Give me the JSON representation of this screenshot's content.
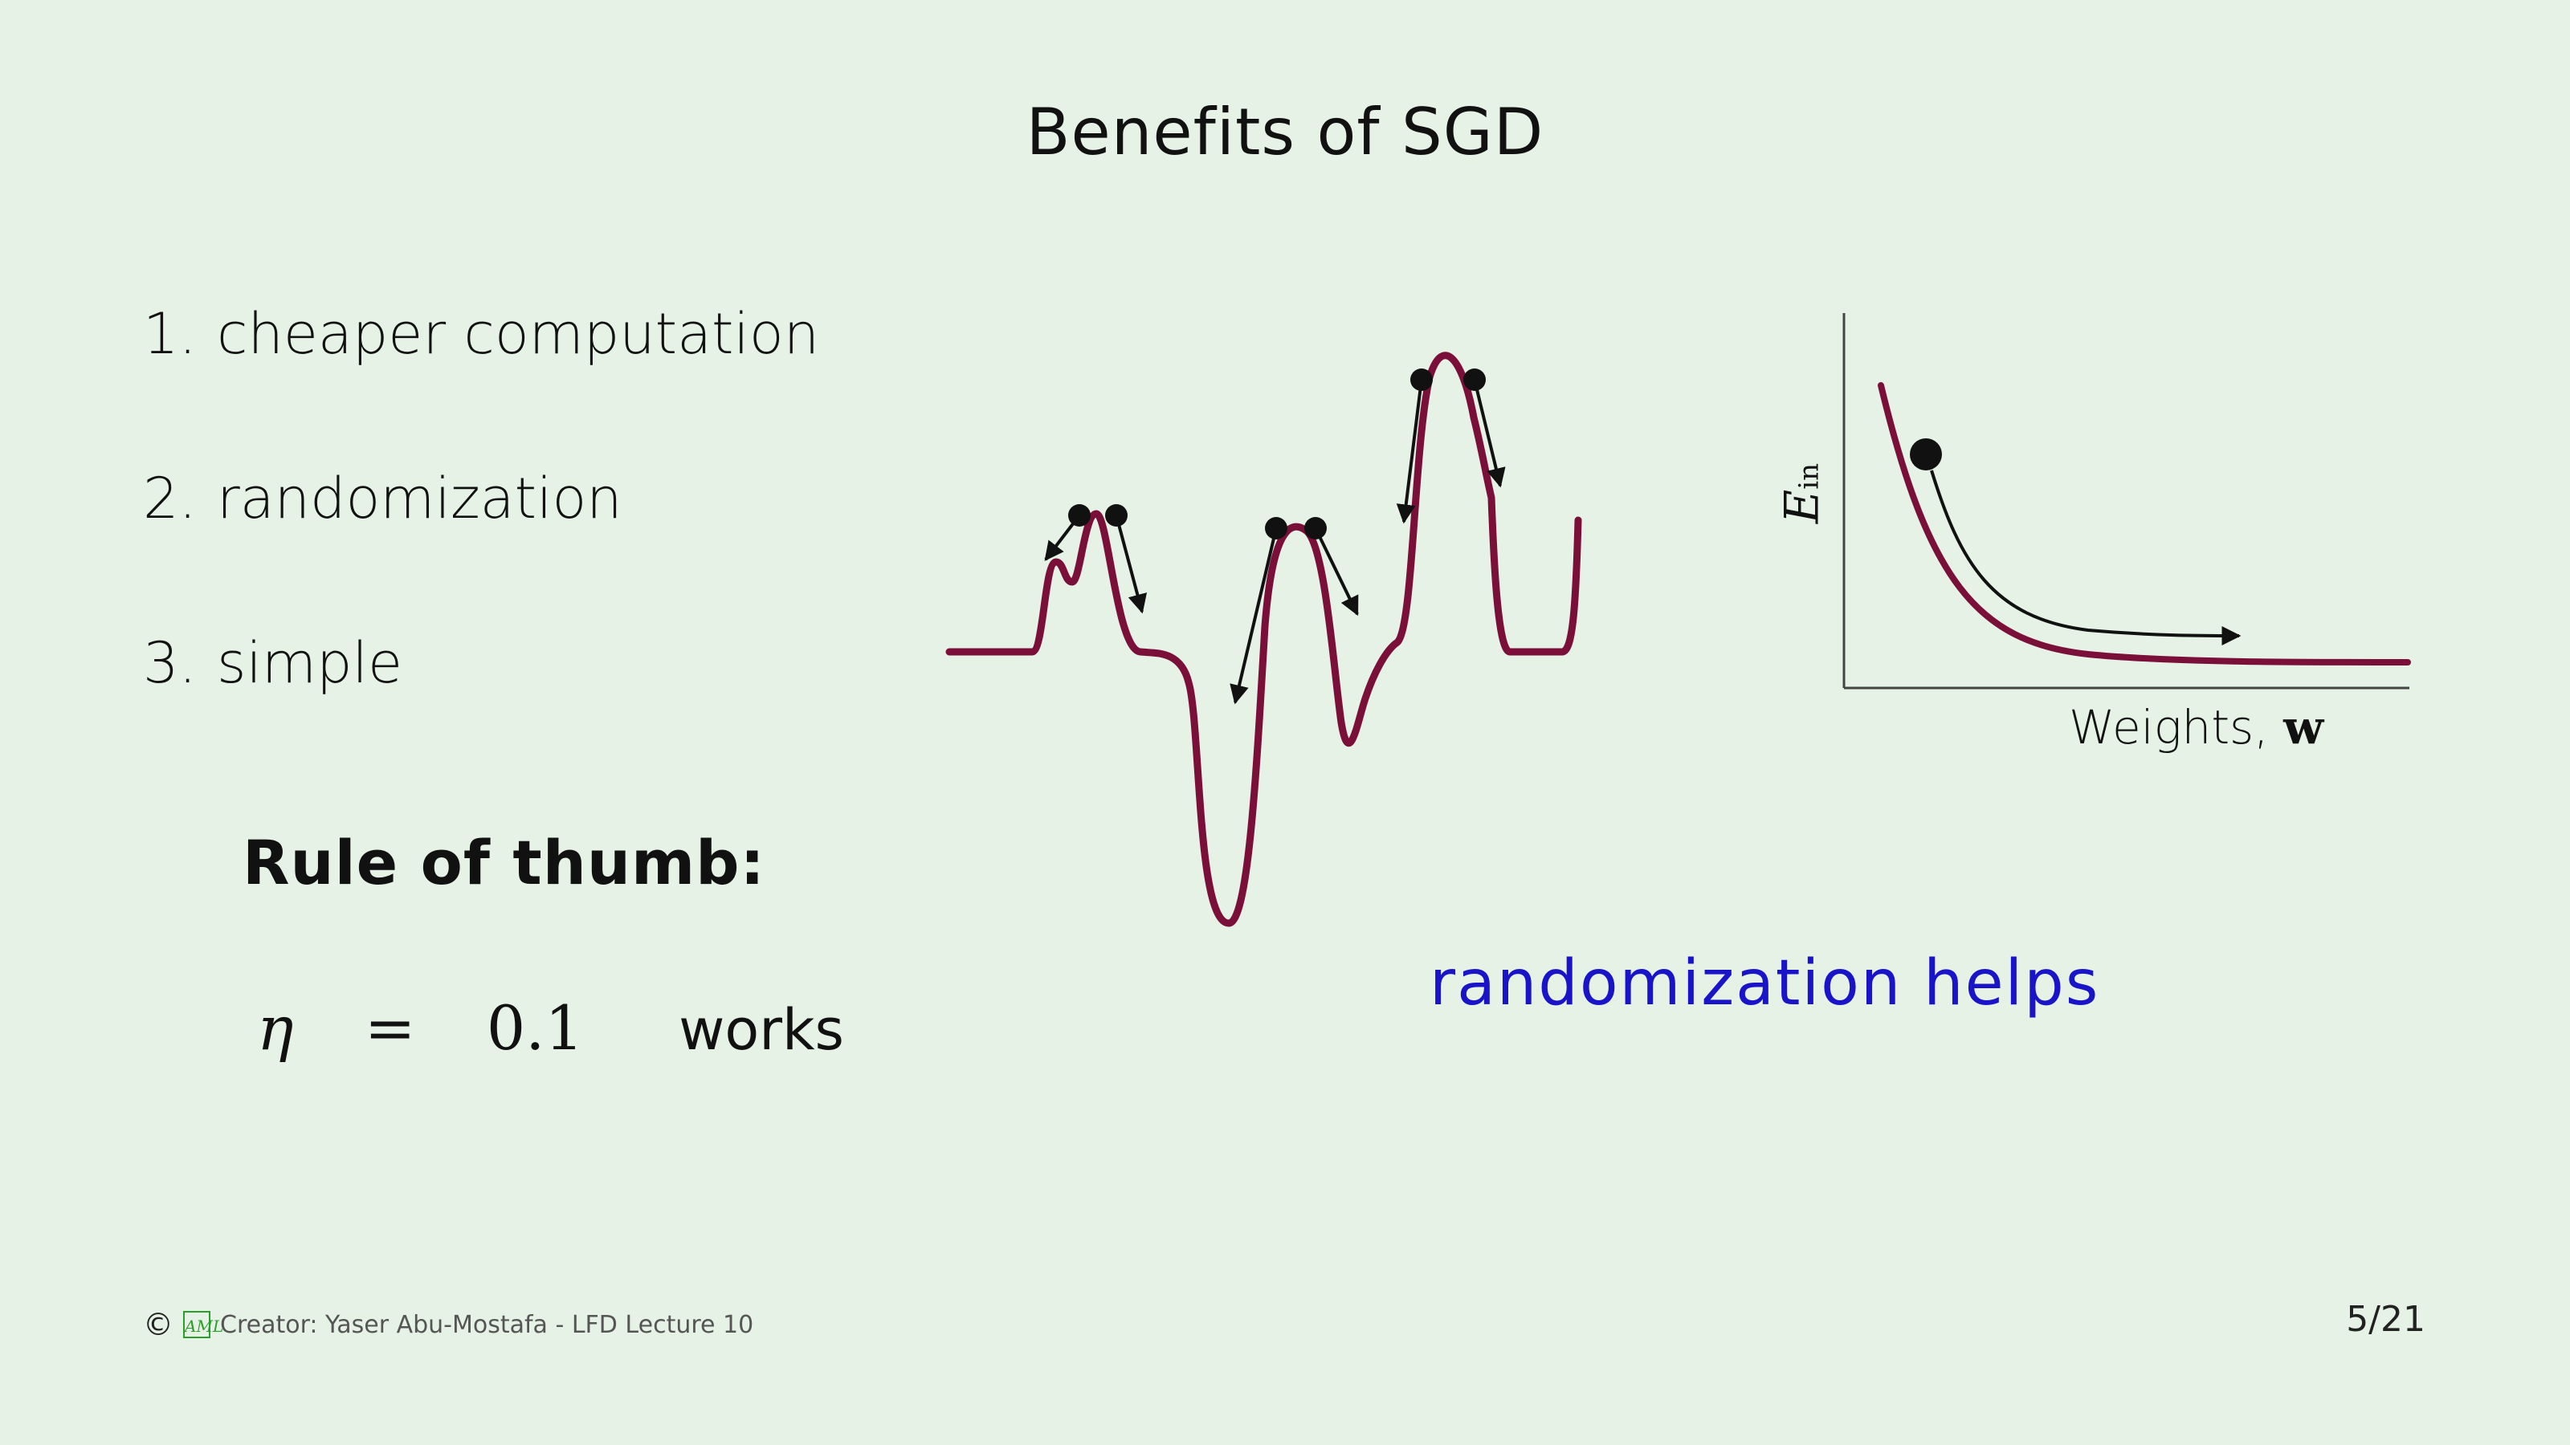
{
  "slide": {
    "title": "Benefits of SGD",
    "items": [
      {
        "number": "1.",
        "text": "cheaper computation"
      },
      {
        "number": "2.",
        "text": "randomization"
      },
      {
        "number": "3.",
        "text": "simple"
      }
    ],
    "rule_heading": "Rule of thumb:",
    "rule_formula": {
      "symbol": "η",
      "equals": "=",
      "value": "0.1",
      "suffix": "works"
    },
    "callout": "randomization helps",
    "small_plot": {
      "ylabel": "E",
      "ylabel_sub": "in",
      "xlabel": "Weights,",
      "xlabel_symbol": "w"
    },
    "footer": {
      "copyright": "©",
      "logo": "AML",
      "credit": "Creator: Yaser Abu-Mostafa - LFD Lecture 10"
    },
    "page": "5/21",
    "colors": {
      "background": "#e5f2e5",
      "curve": "#7a0f3a",
      "callout": "#1a14c8"
    }
  }
}
